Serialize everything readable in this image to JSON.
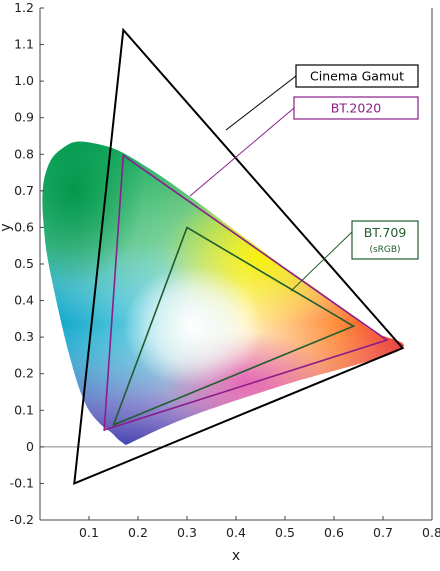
{
  "chart_data": {
    "type": "line",
    "title": "",
    "xlabel": "x",
    "ylabel": "y",
    "xlim": [
      0.0,
      0.8
    ],
    "ylim": [
      -0.2,
      1.2
    ],
    "x_ticks": [
      "0.1",
      "0.2",
      "0.3",
      "0.4",
      "0.5",
      "0.6",
      "0.7",
      "0.8"
    ],
    "x_tick_values": [
      0.1,
      0.2,
      0.3,
      0.4,
      0.5,
      0.6,
      0.7,
      0.8
    ],
    "y_ticks": [
      "-0.2",
      "-0.1",
      "0",
      "0.1",
      "0.2",
      "0.3",
      "0.4",
      "0.5",
      "0.6",
      "0.7",
      "0.8",
      "0.9",
      "1.0",
      "1.1",
      "1.2"
    ],
    "y_tick_values": [
      -0.2,
      -0.1,
      0,
      0.1,
      0.2,
      0.3,
      0.4,
      0.5,
      0.6,
      0.7,
      0.8,
      0.9,
      1.0,
      1.1,
      1.2
    ],
    "grid": false,
    "legend_position": "right",
    "spectral_locus": [
      [
        0.175,
        0.005
      ],
      [
        0.17,
        0.01
      ],
      [
        0.16,
        0.02
      ],
      [
        0.145,
        0.04
      ],
      [
        0.125,
        0.06
      ],
      [
        0.1,
        0.1
      ],
      [
        0.08,
        0.16
      ],
      [
        0.06,
        0.25
      ],
      [
        0.045,
        0.33
      ],
      [
        0.03,
        0.42
      ],
      [
        0.015,
        0.52
      ],
      [
        0.008,
        0.6
      ],
      [
        0.005,
        0.68
      ],
      [
        0.01,
        0.74
      ],
      [
        0.025,
        0.79
      ],
      [
        0.05,
        0.82
      ],
      [
        0.074,
        0.834
      ],
      [
        0.11,
        0.83
      ],
      [
        0.16,
        0.81
      ],
      [
        0.23,
        0.755
      ],
      [
        0.3,
        0.69
      ],
      [
        0.37,
        0.62
      ],
      [
        0.44,
        0.55
      ],
      [
        0.5,
        0.49
      ],
      [
        0.56,
        0.435
      ],
      [
        0.62,
        0.375
      ],
      [
        0.68,
        0.315
      ],
      [
        0.735,
        0.265
      ],
      [
        0.5,
        0.17
      ],
      [
        0.3,
        0.08
      ],
      [
        0.175,
        0.005
      ]
    ],
    "white_point": [
      0.3127,
      0.329
    ],
    "series": [
      {
        "name": "Cinema Gamut",
        "color": "#000000",
        "labels": [
          "Cinema Gamut"
        ],
        "points": [
          [
            0.74,
            0.27
          ],
          [
            0.17,
            1.14
          ],
          [
            0.07,
            -0.1
          ]
        ]
      },
      {
        "name": "BT.2020",
        "color": "#8b1e8b",
        "labels": [
          "BT.2020"
        ],
        "points": [
          [
            0.708,
            0.292
          ],
          [
            0.17,
            0.797
          ],
          [
            0.131,
            0.046
          ]
        ]
      },
      {
        "name": "BT.709",
        "color": "#1f5e2e",
        "labels": [
          "BT.709",
          "(sRGB)"
        ],
        "points": [
          [
            0.64,
            0.33
          ],
          [
            0.3,
            0.6
          ],
          [
            0.15,
            0.06
          ]
        ]
      }
    ]
  }
}
